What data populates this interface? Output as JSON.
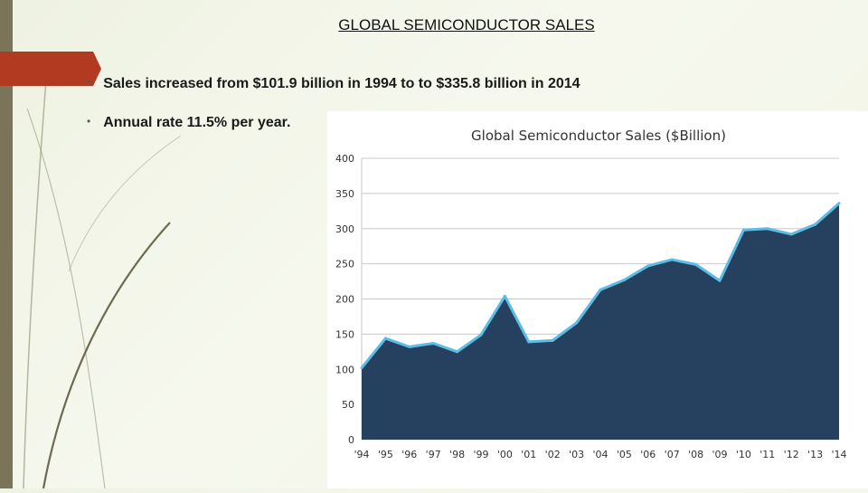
{
  "slide": {
    "title": "GLOBAL SEMICONDUCTOR SALES",
    "bullets": [
      "Sales increased from $101.9 billion in 1994 to to $335.8 billion in 2014",
      "Annual rate 11.5% per year."
    ]
  },
  "colors": {
    "accent_tab": "#b23a20",
    "area_fill": "#26415f",
    "line": "#5bbde6",
    "grid": "#c8c8c8"
  },
  "chart_data": {
    "type": "area",
    "title": "Global Semiconductor Sales ($Billion)",
    "xlabel": "",
    "ylabel": "",
    "x": [
      "'94",
      "'95",
      "'96",
      "'97",
      "'98",
      "'99",
      "'00",
      "'01",
      "'02",
      "'03",
      "'04",
      "'05",
      "'06",
      "'07",
      "'08",
      "'09",
      "'10",
      "'11",
      "'12",
      "'13",
      "'14"
    ],
    "series": [
      {
        "values": [
          102,
          144,
          132,
          137,
          125,
          149,
          204,
          139,
          141,
          166,
          213,
          227,
          247,
          256,
          249,
          226,
          298,
          300,
          292,
          306,
          336
        ]
      }
    ],
    "ylim": [
      0,
      400
    ],
    "yticks": [
      0,
      50,
      100,
      150,
      200,
      250,
      300,
      350,
      400
    ],
    "grid": true,
    "legend": "none"
  }
}
